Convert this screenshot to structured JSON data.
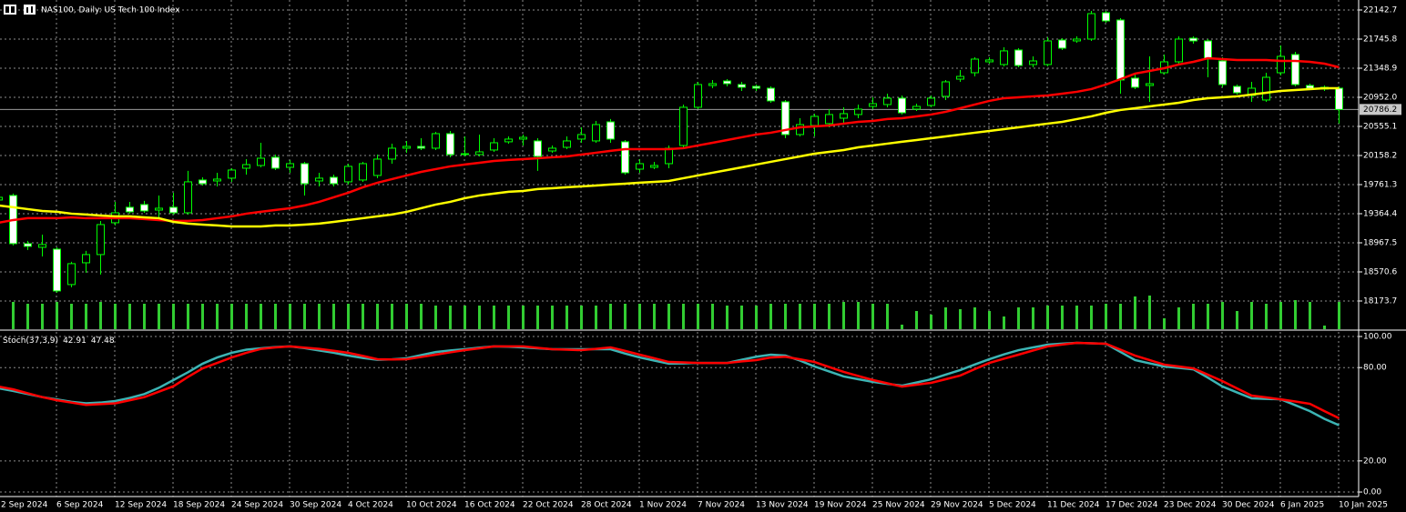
{
  "chart_data": [
    {
      "type": "candlestick",
      "title": "NAS100, Daily:  US Tech 100 Index",
      "categories": [
        "2 Sep 2024",
        null,
        null,
        null,
        "6 Sep 2024",
        null,
        null,
        null,
        "12 Sep 2024",
        null,
        null,
        null,
        "18 Sep 2024",
        null,
        null,
        null,
        "24 Sep 2024",
        null,
        null,
        null,
        "30 Sep 2024",
        null,
        null,
        null,
        "4 Oct 2024",
        null,
        null,
        null,
        "10 Oct 2024",
        null,
        null,
        null,
        "16 Oct 2024",
        null,
        null,
        null,
        "22 Oct 2024",
        null,
        null,
        null,
        "28 Oct 2024",
        null,
        null,
        null,
        "1 Nov 2024",
        null,
        null,
        null,
        "7 Nov 2024",
        null,
        null,
        null,
        "13 Nov 2024",
        null,
        null,
        null,
        "19 Nov 2024",
        null,
        null,
        null,
        "25 Nov 2024",
        null,
        null,
        null,
        "29 Nov 2024",
        null,
        null,
        null,
        "5 Dec 2024",
        null,
        null,
        null,
        "11 Dec 2024",
        null,
        null,
        null,
        "17 Dec 2024",
        null,
        null,
        null,
        "23 Dec 2024",
        null,
        null,
        null,
        "30 Dec 2024",
        null,
        null,
        null,
        "6 Jan 2025",
        null,
        null,
        null,
        "10 Jan 2025"
      ],
      "open": [
        19551,
        19613,
        18956,
        18906,
        18881,
        18398,
        18695,
        18807,
        19241,
        19452,
        19489,
        19414,
        19452,
        19377,
        19824,
        19811,
        19849,
        19985,
        20022,
        20134,
        19997,
        20047,
        19811,
        19861,
        19799,
        19824,
        19886,
        20109,
        20258,
        20282,
        20258,
        20456,
        20171,
        20171,
        20233,
        20345,
        20382,
        20357,
        20220,
        20270,
        20382,
        20357,
        20617,
        20345,
        19972,
        19997,
        20047,
        20295,
        20816,
        21113,
        21175,
        21126,
        21101,
        21076,
        20890,
        20444,
        20568,
        20593,
        20667,
        20717,
        20828,
        20853,
        20940,
        20791,
        20841,
        20965,
        21200,
        21287,
        21436,
        21399,
        21597,
        21399,
        21399,
        21733,
        21721,
        21746,
        22105,
        22006,
        21213,
        21113,
        21287,
        21436,
        21758,
        21721,
        21448,
        21101,
        20977,
        20915,
        21287,
        21535,
        21113,
        21064,
        21076
      ],
      "high": [
        19650,
        19638,
        18993,
        19079,
        18906,
        18708,
        18857,
        19265,
        19526,
        19526,
        19539,
        19613,
        19650,
        19948,
        19861,
        19923,
        19985,
        20109,
        20332,
        20171,
        20096,
        20071,
        19923,
        19898,
        20047,
        20071,
        20171,
        20320,
        20357,
        20394,
        20481,
        20493,
        20419,
        20444,
        20394,
        20419,
        20444,
        20394,
        20295,
        20419,
        20543,
        20630,
        20655,
        20369,
        20109,
        20071,
        20295,
        20853,
        21163,
        21188,
        21200,
        21163,
        21126,
        21101,
        20915,
        20667,
        20729,
        20791,
        20816,
        20853,
        20952,
        21002,
        20977,
        20865,
        20977,
        21188,
        21324,
        21498,
        21498,
        21634,
        21622,
        21510,
        21771,
        21758,
        21783,
        22130,
        22130,
        22031,
        21287,
        21510,
        21535,
        21783,
        21783,
        21746,
        21498,
        21126,
        21163,
        21287,
        21659,
        21572,
        21138,
        21113,
        21101
      ],
      "low": [
        19452,
        18931,
        18869,
        18782,
        18286,
        18361,
        18559,
        18534,
        19204,
        19365,
        19377,
        19303,
        19352,
        19352,
        19749,
        19737,
        19799,
        19898,
        19997,
        19960,
        19923,
        19613,
        19737,
        19737,
        19762,
        19799,
        19849,
        20047,
        20196,
        20233,
        20233,
        20134,
        20146,
        20146,
        20208,
        20320,
        20295,
        19948,
        20196,
        20245,
        20332,
        20332,
        20332,
        19898,
        19923,
        19972,
        19985,
        20258,
        20791,
        21076,
        21101,
        21039,
        21039,
        20878,
        20394,
        20419,
        20419,
        20543,
        20605,
        20667,
        20791,
        20816,
        20717,
        20766,
        20816,
        20915,
        21163,
        21237,
        21411,
        21374,
        21361,
        21361,
        21374,
        21597,
        21696,
        21721,
        21969,
        21002,
        21064,
        20890,
        21262,
        21411,
        21684,
        21225,
        21089,
        20989,
        20890,
        20890,
        21250,
        21101,
        21051,
        21039,
        20593
      ],
      "close": [
        19588,
        18956,
        18919,
        18944,
        18311,
        18683,
        18807,
        19216,
        19377,
        19390,
        19402,
        19439,
        19377,
        19799,
        19774,
        19836,
        19960,
        20034,
        20121,
        19985,
        20047,
        19774,
        19849,
        19774,
        20010,
        20047,
        20109,
        20258,
        20282,
        20258,
        20456,
        20171,
        20183,
        20208,
        20332,
        20382,
        20406,
        20146,
        20258,
        20357,
        20444,
        20580,
        20382,
        19923,
        20047,
        20022,
        20258,
        20816,
        21126,
        21138,
        21138,
        21089,
        21076,
        20903,
        20444,
        20580,
        20692,
        20717,
        20729,
        20791,
        20865,
        20940,
        20741,
        20828,
        20940,
        21163,
        21237,
        21473,
        21461,
        21585,
        21386,
        21448,
        21721,
        21622,
        21746,
        22093,
        21994,
        21188,
        21089,
        21138,
        21436,
        21746,
        21721,
        21473,
        21126,
        21014,
        21076,
        21225,
        21510,
        21126,
        21076,
        21089,
        20786.2
      ],
      "volume": [
        28,
        30,
        28,
        28,
        30,
        28,
        28,
        30,
        28,
        28,
        28,
        28,
        28,
        28,
        28,
        28,
        28,
        28,
        28,
        28,
        28,
        28,
        28,
        28,
        28,
        28,
        28,
        28,
        28,
        28,
        26,
        26,
        26,
        26,
        26,
        26,
        26,
        26,
        26,
        26,
        26,
        26,
        28,
        28,
        28,
        28,
        28,
        28,
        28,
        28,
        26,
        26,
        26,
        28,
        28,
        28,
        28,
        28,
        30,
        30,
        28,
        28,
        5,
        20,
        16,
        24,
        22,
        24,
        20,
        14,
        24,
        24,
        26,
        26,
        26,
        26,
        28,
        28,
        36,
        37,
        12,
        24,
        28,
        28,
        30,
        20,
        30,
        28,
        30,
        32,
        30,
        4,
        30
      ],
      "up_color": "#000000",
      "down_color": "#ffffff",
      "wick_color": "#00ff00",
      "volume_color": "#32cd32",
      "lines": [
        {
          "color": "#ff0000",
          "values": [
            19241,
            19278,
            19303,
            19303,
            19303,
            19315,
            19303,
            19303,
            19303,
            19303,
            19291,
            19278,
            19266,
            19266,
            19278,
            19303,
            19328,
            19365,
            19390,
            19415,
            19439,
            19477,
            19526,
            19588,
            19650,
            19725,
            19787,
            19836,
            19886,
            19935,
            19973,
            20010,
            20035,
            20059,
            20084,
            20097,
            20109,
            20121,
            20134,
            20146,
            20171,
            20196,
            20221,
            20245,
            20245,
            20245,
            20245,
            20258,
            20295,
            20332,
            20369,
            20407,
            20444,
            20469,
            20506,
            20543,
            20555,
            20568,
            20593,
            20617,
            20630,
            20655,
            20667,
            20692,
            20717,
            20754,
            20803,
            20853,
            20903,
            20940,
            20952,
            20965,
            20977,
            21002,
            21027,
            21064,
            21126,
            21200,
            21275,
            21312,
            21349,
            21399,
            21436,
            21485,
            21473,
            21461,
            21461,
            21461,
            21448,
            21448,
            21436,
            21411,
            21361
          ]
        },
        {
          "color": "#ffff00",
          "values": [
            19477,
            19452,
            19427,
            19402,
            19390,
            19365,
            19353,
            19340,
            19328,
            19328,
            19315,
            19303,
            19253,
            19229,
            19216,
            19204,
            19191,
            19191,
            19191,
            19204,
            19204,
            19216,
            19229,
            19253,
            19278,
            19303,
            19328,
            19353,
            19390,
            19439,
            19489,
            19526,
            19576,
            19613,
            19638,
            19663,
            19675,
            19700,
            19712,
            19725,
            19737,
            19749,
            19762,
            19774,
            19787,
            19799,
            19811,
            19849,
            19886,
            19923,
            19960,
            19997,
            20035,
            20072,
            20109,
            20146,
            20183,
            20208,
            20233,
            20270,
            20295,
            20320,
            20345,
            20369,
            20394,
            20419,
            20444,
            20469,
            20493,
            20518,
            20543,
            20568,
            20593,
            20617,
            20655,
            20692,
            20741,
            20779,
            20803,
            20828,
            20853,
            20878,
            20915,
            20940,
            20952,
            20965,
            20989,
            21014,
            21039,
            21051,
            21064,
            21076,
            21076
          ]
        }
      ],
      "ylim": [
        17789,
        22279
      ],
      "yticks": [
        22142.7,
        21745.8,
        21348.9,
        {
          "value": 20952,
          "label": "20952.0"
        },
        20555.1,
        20158.2,
        19761.3,
        19364.4,
        18967.5,
        18570.6,
        18173.7
      ],
      "grid": true,
      "last_price_line": true
    },
    {
      "type": "line",
      "title": "Stoch(37,3,9)",
      "series": [
        {
          "color": "#3cb4b4",
          "values": [
            66.7,
            65,
            63,
            61,
            59.5,
            58,
            57,
            57.5,
            58.5,
            60.5,
            63,
            67,
            72,
            77,
            82.5,
            86.5,
            89.5,
            91.5,
            92.4,
            93.2,
            93.6,
            92.5,
            91,
            89.5,
            87.7,
            86.2,
            85,
            85.3,
            86,
            88,
            90,
            91,
            91.8,
            92.8,
            93.6,
            93.4,
            93,
            92.4,
            91.8,
            91.8,
            91.8,
            91.8,
            91.8,
            89,
            86.5,
            84.5,
            82.5,
            82.7,
            83,
            83,
            83,
            85,
            87,
            88.3,
            87.7,
            84.5,
            80.7,
            77.5,
            74.3,
            72.5,
            70.8,
            69.5,
            68.4,
            70.4,
            72.5,
            75.5,
            78.4,
            82,
            85.4,
            88.5,
            91.2,
            93,
            94.7,
            95.4,
            95.9,
            95.6,
            95.3,
            90,
            84.8,
            82.7,
            80.7,
            79.8,
            78.9,
            73.5,
            67.8,
            64,
            60.2,
            59.9,
            59.6,
            55.8,
            52,
            47,
            42.91
          ]
        },
        {
          "color": "#ff0000",
          "values": [
            67.8,
            66,
            63.5,
            61,
            59,
            57.5,
            56,
            56.5,
            57,
            59,
            61,
            64.5,
            68,
            74,
            79.5,
            83,
            86.5,
            89.5,
            92,
            93,
            93.6,
            92.8,
            92,
            90.8,
            89.5,
            87.5,
            85.4,
            85.2,
            85.4,
            86.8,
            88.3,
            89.8,
            91.2,
            92.4,
            93.6,
            93.6,
            93.6,
            92.7,
            91.8,
            91.5,
            91.2,
            92,
            93,
            90.7,
            88.3,
            86,
            83.6,
            83.3,
            83,
            83,
            83,
            84,
            84.8,
            86.5,
            87,
            85.3,
            83.6,
            80.4,
            77.2,
            74.6,
            72,
            69.9,
            67.8,
            69,
            70.2,
            72.5,
            74.9,
            79,
            83,
            85.7,
            88.3,
            91,
            93.6,
            94.8,
            95.9,
            95.6,
            95.3,
            91.5,
            87.7,
            84.8,
            81.9,
            80.7,
            79.5,
            75.4,
            71.3,
            66.6,
            62,
            60.8,
            59.6,
            58.2,
            56.7,
            52,
            47.48
          ]
        }
      ],
      "ylim": [
        -2.9,
        103.5
      ],
      "yticks": [
        {
          "value": 100,
          "label": "100.00"
        },
        {
          "value": 80,
          "label": "80.00"
        },
        {
          "value": 20,
          "label": "20.00"
        },
        {
          "value": 0,
          "label": "0.00"
        }
      ],
      "grid": true
    }
  ]
}
